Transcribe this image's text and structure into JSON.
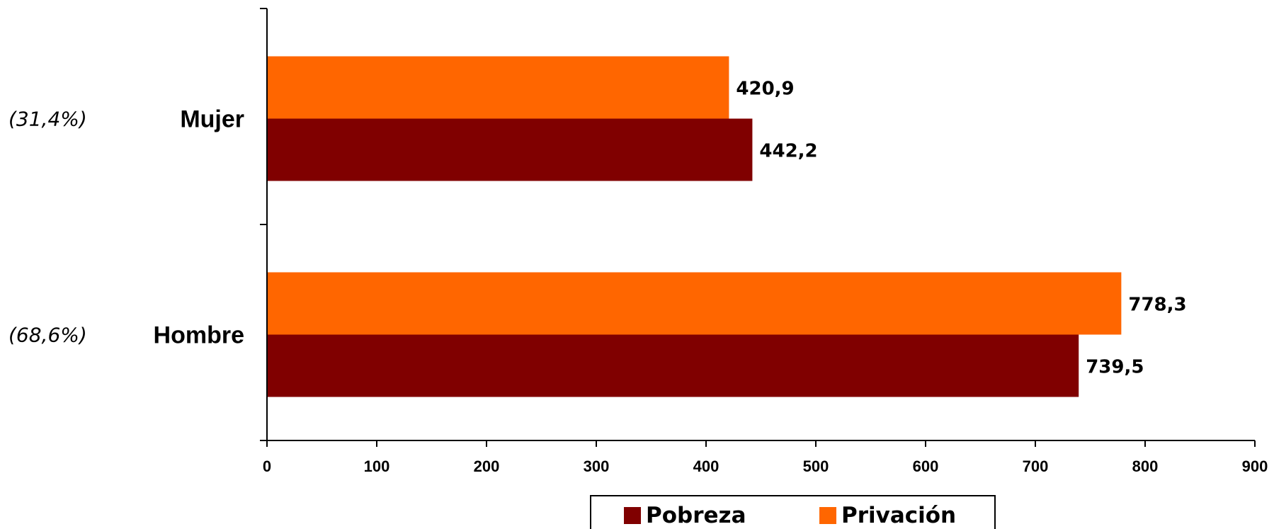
{
  "chart_data": {
    "type": "bar",
    "orientation": "horizontal",
    "title": "",
    "xlabel": "",
    "ylabel": "",
    "xlim": [
      0,
      900
    ],
    "x_ticks": [
      "0",
      "100",
      "200",
      "300",
      "400",
      "500",
      "600",
      "700",
      "800",
      "900"
    ],
    "grid": false,
    "categories": [
      "Mujer",
      "Hombre"
    ],
    "category_shares": [
      "(31,4%)",
      "(68,6%)"
    ],
    "series": [
      {
        "name": "Pobreza",
        "color": "#800000",
        "values": [
          442.2,
          739.5
        ],
        "labels": [
          "442,2",
          "739,5"
        ]
      },
      {
        "name": "Privación",
        "color": "#ff6600",
        "values": [
          420.9,
          778.3
        ],
        "labels": [
          "420,9",
          "778,3"
        ]
      }
    ],
    "legend": {
      "placement": "bottom-center",
      "items": [
        "Pobreza",
        "Privación"
      ]
    }
  }
}
